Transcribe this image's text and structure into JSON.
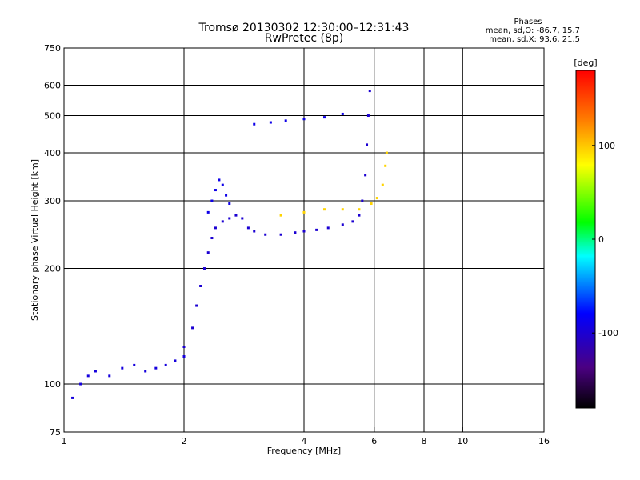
{
  "header": {
    "title_line1": "Tromsø 20130302 12:30:00–12:31:43",
    "title_line2": "RwPretec (8p)"
  },
  "phase_box": {
    "heading": "Phases",
    "line_o": "mean, sd,O: -86.7, 15.7",
    "line_x": "mean, sd,X:  93.6, 21.5"
  },
  "chart_data": {
    "type": "scatter",
    "xlabel": "Frequency [MHz]",
    "ylabel": "Stationary phase Virtual Height [km]",
    "x_scale": "log",
    "y_scale": "log",
    "xlim": [
      1,
      16
    ],
    "ylim": [
      75,
      750
    ],
    "x_ticks": [
      1,
      2,
      4,
      6,
      8,
      10,
      16
    ],
    "x_tick_labels": [
      "1",
      "2",
      "4",
      "6",
      "8",
      "10",
      "16"
    ],
    "y_ticks": [
      75,
      100,
      200,
      300,
      400,
      500,
      600,
      750
    ],
    "y_tick_labels": [
      "75",
      "100",
      "200",
      "300",
      "400",
      "500",
      "600",
      "750"
    ],
    "grid_x": [
      2,
      4,
      6,
      8,
      10
    ],
    "grid_y": [
      100,
      200,
      300,
      400,
      500,
      600
    ],
    "colorbar": {
      "label": "[deg]",
      "range": [
        -180,
        180
      ],
      "ticks": [
        100,
        0,
        -100
      ],
      "tick_labels": [
        "100",
        "0",
        "-100"
      ]
    },
    "series": [
      {
        "points": [
          [
            1.05,
            92
          ],
          [
            1.1,
            100
          ],
          [
            1.15,
            105
          ],
          [
            1.2,
            108
          ],
          [
            1.3,
            105
          ],
          [
            1.4,
            110
          ],
          [
            1.5,
            112
          ],
          [
            1.6,
            108
          ],
          [
            1.7,
            110
          ],
          [
            1.8,
            112
          ],
          [
            1.9,
            115
          ],
          [
            2.0,
            118
          ]
        ],
        "phase": -95
      },
      {
        "points": [
          [
            2.0,
            125
          ],
          [
            2.1,
            140
          ],
          [
            2.15,
            160
          ],
          [
            2.2,
            180
          ],
          [
            2.25,
            200
          ],
          [
            2.3,
            220
          ],
          [
            2.35,
            240
          ],
          [
            2.4,
            255
          ],
          [
            2.5,
            265
          ],
          [
            2.6,
            270
          ],
          [
            2.7,
            275
          ],
          [
            2.8,
            270
          ]
        ],
        "phase": -100
      },
      {
        "points": [
          [
            2.9,
            255
          ],
          [
            3.0,
            250
          ],
          [
            3.2,
            245
          ],
          [
            3.5,
            245
          ],
          [
            3.8,
            248
          ],
          [
            4.0,
            250
          ],
          [
            4.3,
            252
          ],
          [
            4.6,
            255
          ],
          [
            5.0,
            260
          ],
          [
            5.3,
            265
          ],
          [
            5.5,
            275
          ],
          [
            5.6,
            300
          ],
          [
            5.7,
            350
          ],
          [
            5.75,
            420
          ],
          [
            5.8,
            500
          ],
          [
            5.85,
            580
          ]
        ],
        "phase": -100
      },
      {
        "points": [
          [
            3.5,
            275
          ],
          [
            4.0,
            280
          ],
          [
            4.5,
            285
          ],
          [
            5.0,
            285
          ],
          [
            5.5,
            285
          ],
          [
            5.9,
            295
          ],
          [
            6.1,
            305
          ],
          [
            6.3,
            330
          ],
          [
            6.4,
            370
          ],
          [
            6.45,
            400
          ]
        ],
        "phase": 95
      },
      {
        "points": [
          [
            3.0,
            475
          ],
          [
            3.3,
            480
          ],
          [
            3.6,
            485
          ],
          [
            4.0,
            490
          ],
          [
            4.5,
            495
          ],
          [
            5.0,
            505
          ]
        ],
        "phase": -90
      },
      {
        "points": [
          [
            2.3,
            280
          ],
          [
            2.35,
            300
          ],
          [
            2.4,
            320
          ],
          [
            2.45,
            340
          ],
          [
            2.5,
            330
          ],
          [
            2.55,
            310
          ],
          [
            2.6,
            295
          ]
        ],
        "phase": -90
      }
    ]
  }
}
